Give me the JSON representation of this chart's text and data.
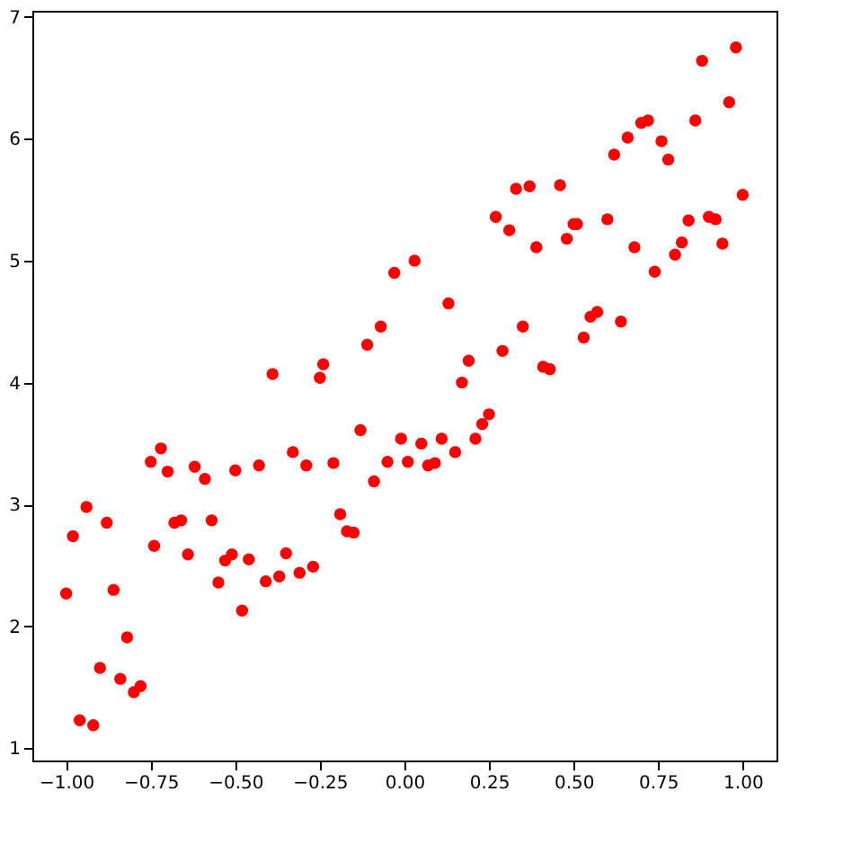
{
  "chart_data": {
    "type": "scatter",
    "marker": "circle",
    "grid": false,
    "series": [
      {
        "color": "#ff0000",
        "x": [
          -1.0,
          -0.98,
          -0.96,
          -0.94,
          -0.92,
          -0.9,
          -0.88,
          -0.86,
          -0.84,
          -0.82,
          -0.8,
          -0.78,
          -0.75,
          -0.74,
          -0.72,
          -0.7,
          -0.68,
          -0.66,
          -0.64,
          -0.62,
          -0.59,
          -0.57,
          -0.55,
          -0.53,
          -0.51,
          -0.5,
          -0.48,
          -0.46,
          -0.43,
          -0.41,
          -0.39,
          -0.37,
          -0.35,
          -0.33,
          -0.31,
          -0.29,
          -0.27,
          -0.25,
          -0.24,
          -0.21,
          -0.19,
          -0.17,
          -0.15,
          -0.13,
          -0.11,
          -0.09,
          -0.07,
          -0.05,
          -0.03,
          -0.01,
          0.01,
          0.03,
          0.05,
          0.07,
          0.09,
          0.11,
          0.13,
          0.15,
          0.17,
          0.19,
          0.21,
          0.23,
          0.25,
          0.27,
          0.29,
          0.31,
          0.33,
          0.35,
          0.37,
          0.39,
          0.41,
          0.43,
          0.46,
          0.48,
          0.5,
          0.51,
          0.53,
          0.55,
          0.57,
          0.6,
          0.62,
          0.64,
          0.66,
          0.68,
          0.7,
          0.72,
          0.74,
          0.76,
          0.78,
          0.8,
          0.82,
          0.84,
          0.86,
          0.88,
          0.9,
          0.92,
          0.94,
          0.96,
          0.98,
          1.0
        ],
        "values": [
          2.27,
          2.74,
          1.23,
          2.98,
          1.19,
          1.66,
          2.85,
          2.3,
          1.57,
          1.91,
          1.46,
          1.51,
          3.35,
          2.66,
          3.46,
          3.27,
          2.85,
          2.87,
          2.59,
          3.31,
          3.21,
          2.87,
          2.36,
          2.54,
          2.59,
          3.28,
          2.13,
          2.55,
          3.32,
          2.37,
          4.07,
          2.41,
          2.6,
          3.43,
          2.44,
          3.32,
          2.49,
          4.04,
          4.15,
          3.34,
          2.92,
          2.78,
          2.77,
          3.61,
          4.31,
          3.19,
          4.46,
          3.35,
          4.9,
          3.54,
          3.35,
          5.0,
          3.5,
          3.32,
          3.34,
          3.54,
          4.65,
          3.43,
          4.0,
          4.18,
          3.54,
          3.66,
          3.74,
          5.36,
          4.26,
          5.25,
          5.59,
          4.46,
          5.61,
          5.11,
          4.13,
          4.11,
          5.62,
          5.18,
          5.3,
          5.3,
          4.37,
          4.54,
          4.58,
          5.34,
          5.87,
          4.5,
          6.01,
          5.11,
          6.13,
          6.15,
          4.91,
          5.98,
          5.83,
          5.05,
          5.15,
          5.33,
          6.15,
          6.64,
          5.36,
          5.34,
          5.14,
          6.3,
          6.75,
          5.54
        ]
      }
    ],
    "xlim": [
      -1.1,
      1.1
    ],
    "xticks": [
      {
        "value": -1,
        "label": "−1.00"
      },
      {
        "value": -0.75,
        "label": "−0.75"
      },
      {
        "value": -0.5,
        "label": "−0.50"
      },
      {
        "value": -0.25,
        "label": "−0.25"
      },
      {
        "value": 0,
        "label": "0.00"
      },
      {
        "value": 0.25,
        "label": "0.25"
      },
      {
        "value": 0.5,
        "label": "0.50"
      },
      {
        "value": 0.75,
        "label": "0.75"
      },
      {
        "value": 1,
        "label": "1.00"
      }
    ],
    "ylim": [
      0.9,
      7.05
    ],
    "yticks": [
      1,
      2,
      3,
      4,
      5,
      6,
      7
    ]
  }
}
